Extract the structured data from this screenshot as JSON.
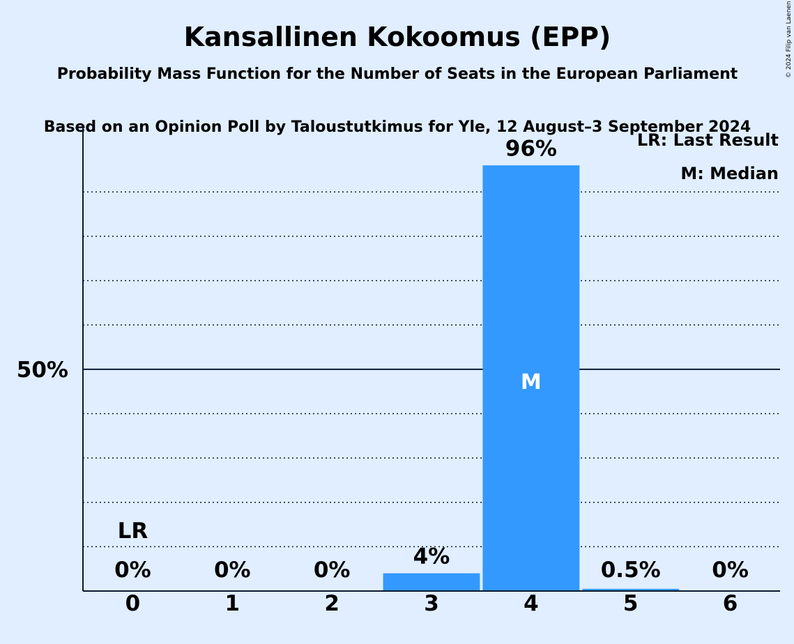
{
  "chart_data": {
    "type": "bar",
    "title": "Kansallinen Kokoomus (EPP)",
    "subtitle_1": "Probability Mass Function for the Number of Seats in the European Parliament",
    "subtitle_2": "Based on an Opinion Poll by Taloustutkimus for Yle, 12 August–3 September 2024",
    "copyright": "© 2024 Filip van Laenen",
    "categories": [
      "0",
      "1",
      "2",
      "3",
      "4",
      "5",
      "6"
    ],
    "values": [
      0,
      0,
      0,
      4,
      96,
      0.5,
      0
    ],
    "value_labels": [
      "0%",
      "0%",
      "0%",
      "4%",
      "96%",
      "0.5%",
      "0%"
    ],
    "ylim": [
      0,
      105
    ],
    "y_tick_label": "50%",
    "y_tick_value": 50,
    "gridlines": [
      10,
      20,
      30,
      40,
      60,
      70,
      80,
      90
    ],
    "last_result_category": "0",
    "last_result_marker": "LR",
    "median_category": "4",
    "median_marker": "M",
    "legend": [
      "LR: Last Result",
      "M: Median"
    ],
    "legend_position": "top-right",
    "bar_color": "#3399ff"
  }
}
